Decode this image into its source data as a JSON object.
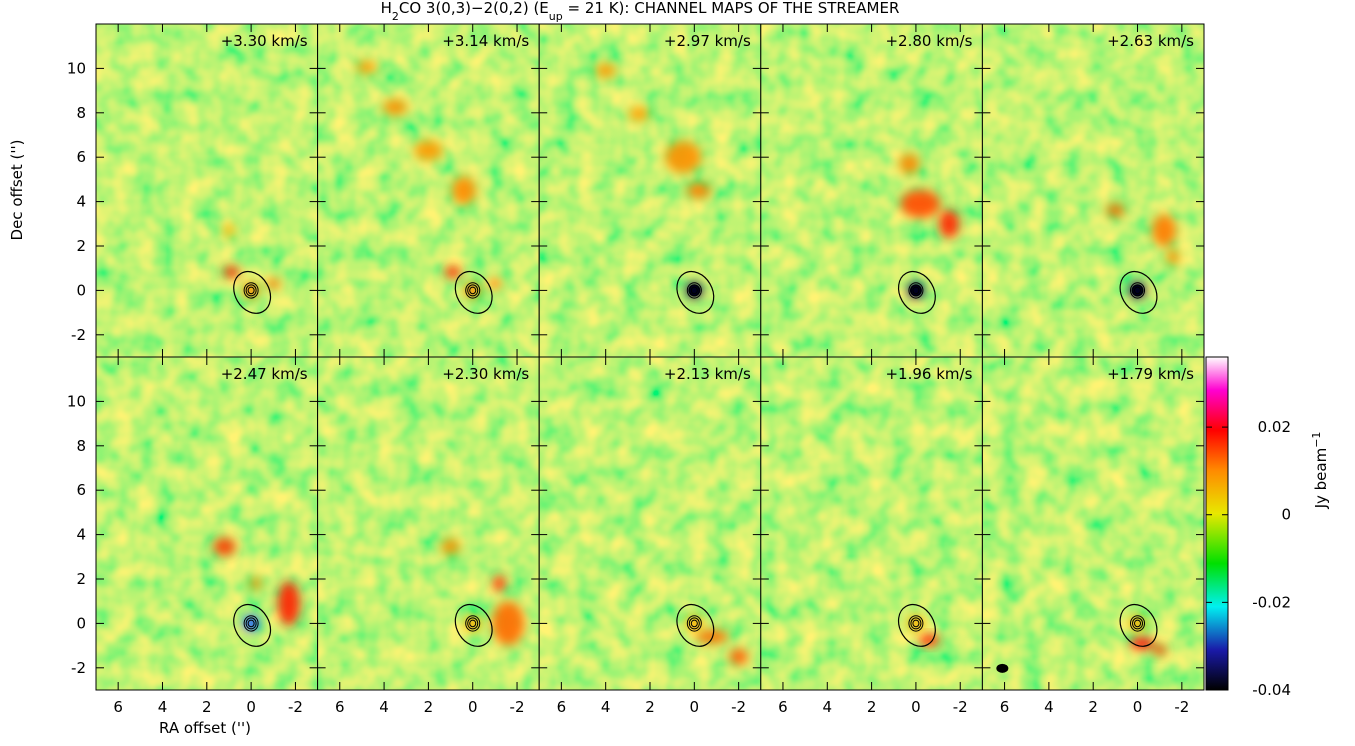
{
  "chart_data": {
    "type": "channel_maps",
    "title": [
      {
        "text": "H"
      },
      {
        "text": "2",
        "sub": true
      },
      {
        "text": "CO 3(0,3)−2(0,2) (E"
      },
      {
        "text": "up",
        "sub": true
      },
      {
        "text": " = 21 K): CHANNEL MAPS OF THE STREAMER"
      }
    ],
    "panels": [
      "+3.30 km/s",
      "+3.14 km/s",
      "+2.97 km/s",
      "+2.80 km/s",
      "+2.63 km/s",
      "+2.47 km/s",
      "+2.30 km/s",
      "+2.13 km/s",
      "+1.96 km/s",
      "+1.79 km/s"
    ],
    "xlabel": "RA offset ('')",
    "ylabel": "Dec offset ('')",
    "xlim": [
      7,
      -3
    ],
    "xticks": [
      6,
      4,
      2,
      0,
      -2
    ],
    "ylim": [
      -3,
      12
    ],
    "yticks": [
      -2,
      0,
      2,
      4,
      6,
      8,
      10
    ],
    "colorbar": {
      "label": [
        {
          "text": "Jy beam"
        },
        {
          "text": "−1",
          "sup": true
        }
      ],
      "lim": [
        -0.04,
        0.036
      ],
      "ticks": [
        -0.04,
        -0.02,
        0,
        0.02
      ]
    }
  }
}
